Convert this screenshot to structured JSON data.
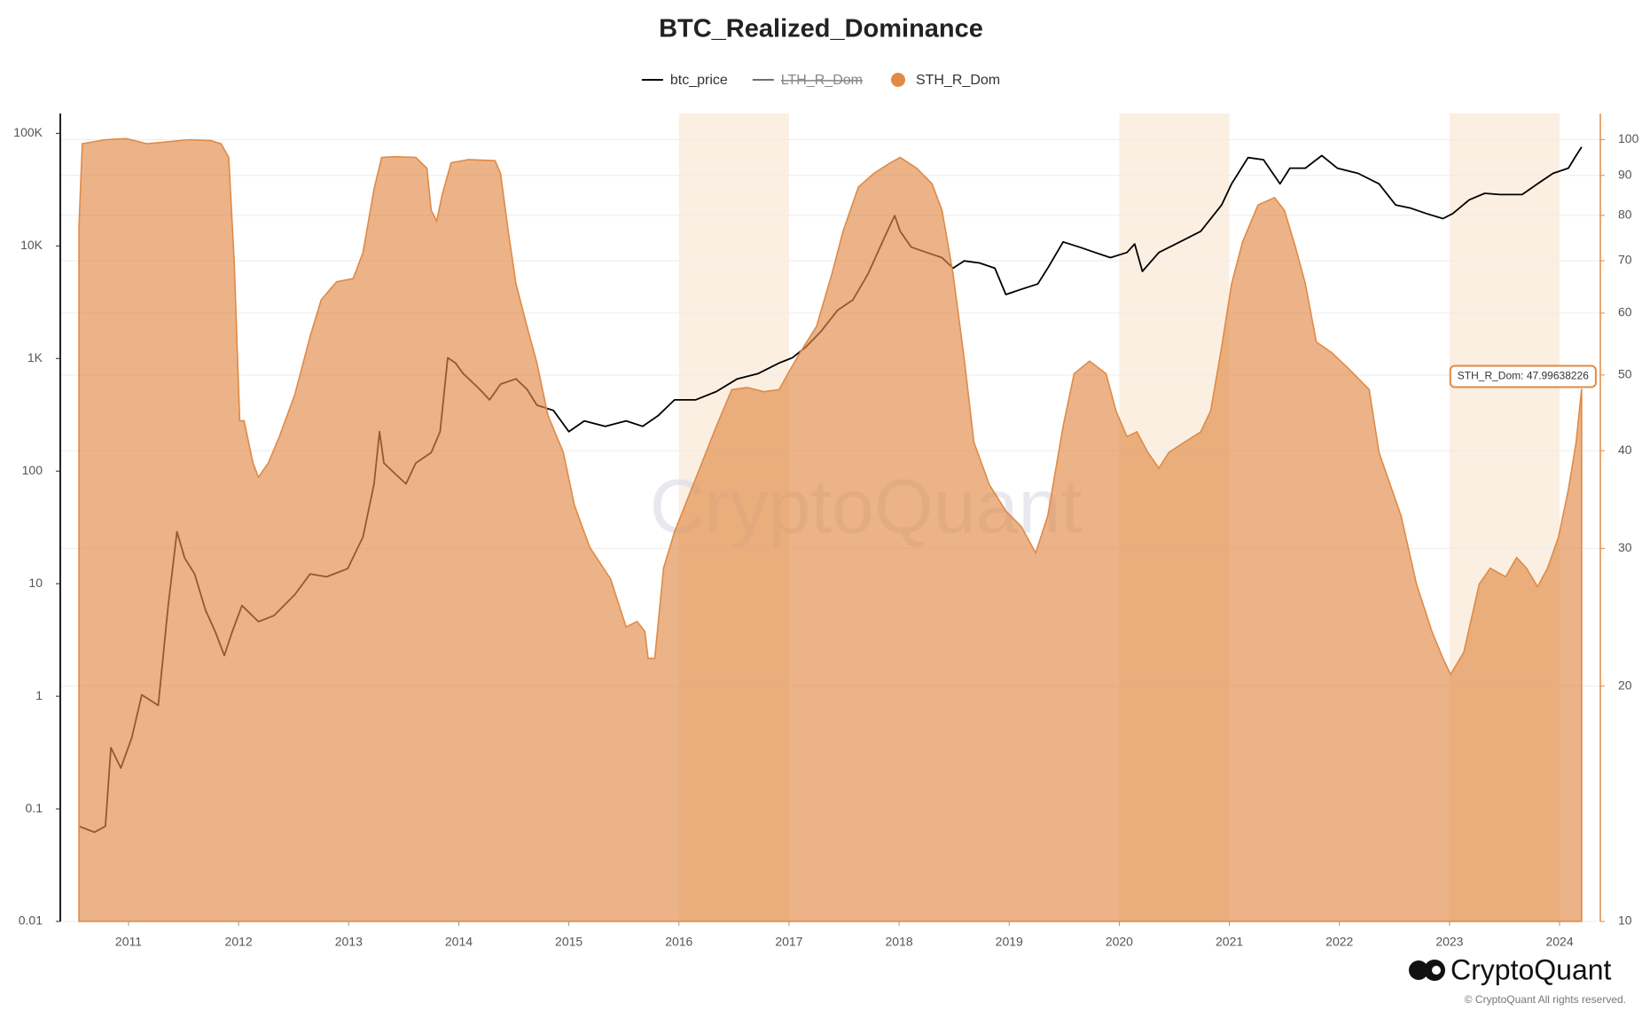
{
  "chart_data": {
    "type": "line",
    "title": "BTC_Realized_Dominance",
    "xlim": [
      2010.38,
      2024.37
    ],
    "xticks": [
      2011,
      2012,
      2013,
      2014,
      2015,
      2016,
      2017,
      2018,
      2019,
      2020,
      2021,
      2022,
      2023,
      2024
    ],
    "ylim": [
      0.01,
      150000
    ],
    "ylog": true,
    "yticks": [
      0.01,
      0.1,
      1,
      10,
      100,
      {
        "value": 1000,
        "label": "1K"
      },
      {
        "value": 10000,
        "label": "10K"
      },
      {
        "value": 100000,
        "label": "100K"
      }
    ],
    "y2lim": [
      10,
      108
    ],
    "y2log": true,
    "y2ticks": [
      10,
      20,
      30,
      40,
      50,
      60,
      70,
      80,
      90,
      100
    ],
    "grid": "y2",
    "shaded_ranges": [
      [
        2016,
        2017
      ],
      [
        2020,
        2021
      ],
      [
        2023,
        2024
      ]
    ],
    "shade_color": "#fbefe2",
    "series": [
      {
        "name": "btc_price",
        "type": "line",
        "color": "#000000",
        "x": [
          2010.55,
          2010.69,
          2010.79,
          2010.84,
          2010.93,
          2011.03,
          2011.12,
          2011.27,
          2011.36,
          2011.44,
          2011.51,
          2011.6,
          2011.7,
          2011.79,
          2011.87,
          2011.94,
          2012.03,
          2012.18,
          2012.32,
          2012.51,
          2012.65,
          2012.8,
          2012.99,
          2013.13,
          2013.23,
          2013.28,
          2013.32,
          2013.42,
          2013.52,
          2013.61,
          2013.75,
          2013.83,
          2013.9,
          2013.97,
          2014.04,
          2014.19,
          2014.28,
          2014.38,
          2014.52,
          2014.62,
          2014.71,
          2014.86,
          2015.0,
          2015.14,
          2015.33,
          2015.52,
          2015.67,
          2015.81,
          2015.96,
          2016.15,
          2016.34,
          2016.53,
          2016.72,
          2016.91,
          2017.03,
          2017.15,
          2017.29,
          2017.44,
          2017.58,
          2017.72,
          2017.87,
          2017.96,
          2018.01,
          2018.11,
          2018.25,
          2018.39,
          2018.49,
          2018.59,
          2018.73,
          2018.87,
          2018.97,
          2019.11,
          2019.26,
          2019.35,
          2019.49,
          2019.64,
          2019.78,
          2019.92,
          2020.07,
          2020.14,
          2020.21,
          2020.36,
          2020.55,
          2020.74,
          2020.93,
          2021.02,
          2021.17,
          2021.31,
          2021.46,
          2021.55,
          2021.69,
          2021.84,
          2021.98,
          2022.17,
          2022.36,
          2022.51,
          2022.65,
          2022.79,
          2022.94,
          2023.03,
          2023.18,
          2023.32,
          2023.46,
          2023.66,
          2023.8,
          2023.94,
          2024.08,
          2024.15,
          2024.2
        ],
        "values": [
          0.07,
          0.062,
          0.07,
          0.35,
          0.23,
          0.43,
          1.03,
          0.83,
          6.4,
          29,
          16.9,
          12.2,
          5.8,
          3.7,
          2.3,
          3.7,
          6.4,
          4.6,
          5.2,
          8.0,
          12.2,
          11.5,
          13.6,
          26,
          77,
          224,
          118,
          95,
          77,
          118,
          146,
          224,
          1016,
          912,
          735,
          532,
          429,
          593,
          659,
          532,
          385,
          346,
          224,
          279,
          250,
          279,
          250,
          310,
          429,
          429,
          509,
          659,
          735,
          912,
          1016,
          1259,
          1738,
          2679,
          3319,
          5690,
          12100,
          18600,
          13500,
          9750,
          8750,
          7870,
          6340,
          7360,
          7060,
          6340,
          3700,
          4120,
          4590,
          6340,
          10860,
          9750,
          8750,
          7870,
          8750,
          10400,
          5940,
          8750,
          10860,
          13500,
          23100,
          35600,
          60900,
          58300,
          35600,
          49100,
          49100,
          63500,
          49100,
          44100,
          35600,
          23100,
          21600,
          19400,
          17500,
          19400,
          25700,
          29300,
          28600,
          28600,
          35600,
          44100,
          49100,
          63500,
          75500
        ]
      },
      {
        "name": "LTH_R_Dom",
        "color": "#6e6e7a",
        "visible": false
      },
      {
        "name": "STH_R_Dom",
        "type": "area",
        "axis": "y2",
        "color": "#e08a46",
        "x": [
          2010.55,
          2010.58,
          2010.79,
          2010.98,
          2011.17,
          2011.36,
          2011.55,
          2011.75,
          2011.84,
          2011.91,
          2011.96,
          2012.01,
          2012.05,
          2012.13,
          2012.18,
          2012.27,
          2012.37,
          2012.51,
          2012.65,
          2012.75,
          2012.89,
          2013.04,
          2013.13,
          2013.23,
          2013.3,
          2013.42,
          2013.61,
          2013.71,
          2013.75,
          2013.8,
          2013.85,
          2013.93,
          2014.09,
          2014.33,
          2014.38,
          2014.45,
          2014.52,
          2014.62,
          2014.71,
          2014.81,
          2014.95,
          2015.05,
          2015.19,
          2015.38,
          2015.52,
          2015.62,
          2015.69,
          2015.72,
          2015.78,
          2015.86,
          2015.96,
          2016.15,
          2016.34,
          2016.48,
          2016.62,
          2016.77,
          2016.91,
          2016.99,
          2017.1,
          2017.25,
          2017.39,
          2017.49,
          2017.63,
          2017.77,
          2017.92,
          2018.01,
          2018.16,
          2018.3,
          2018.39,
          2018.49,
          2018.59,
          2018.68,
          2018.82,
          2018.97,
          2019.11,
          2019.24,
          2019.35,
          2019.49,
          2019.59,
          2019.73,
          2019.88,
          2019.97,
          2020.07,
          2020.16,
          2020.26,
          2020.36,
          2020.45,
          2020.59,
          2020.74,
          2020.83,
          2020.93,
          2021.02,
          2021.12,
          2021.26,
          2021.41,
          2021.5,
          2021.6,
          2021.69,
          2021.79,
          2021.93,
          2022.08,
          2022.27,
          2022.36,
          2022.56,
          2022.7,
          2022.84,
          2022.94,
          2023.01,
          2023.13,
          2023.27,
          2023.37,
          2023.51,
          2023.61,
          2023.7,
          2023.8,
          2023.89,
          2023.99,
          2024.08,
          2024.15,
          2024.2
        ],
        "values": [
          77.5,
          98.8,
          100.0,
          100.3,
          98.8,
          99.4,
          100.0,
          99.7,
          98.8,
          94.9,
          69.6,
          43.7,
          43.7,
          38.6,
          37.0,
          38.6,
          41.7,
          47.2,
          56.0,
          62.4,
          65.8,
          66.4,
          71.7,
          86.5,
          94.9,
          95.1,
          94.9,
          91.9,
          81.2,
          78.7,
          85.1,
          93.4,
          94.3,
          94.0,
          90.5,
          76.3,
          65.4,
          57.7,
          51.8,
          44.4,
          39.8,
          34.1,
          30.1,
          27.4,
          23.8,
          24.2,
          23.5,
          21.7,
          21.7,
          28.3,
          31.5,
          36.8,
          43.0,
          47.9,
          48.2,
          47.6,
          47.9,
          50.2,
          53.4,
          57.7,
          67.4,
          76.3,
          87.0,
          90.5,
          93.4,
          94.9,
          91.9,
          87.8,
          81.2,
          67.4,
          52.6,
          41.0,
          36.2,
          33.5,
          32.0,
          29.6,
          33.0,
          43.0,
          50.2,
          52.1,
          50.2,
          45.0,
          41.7,
          42.3,
          39.8,
          38.0,
          39.8,
          41.0,
          42.3,
          45.0,
          54.3,
          65.4,
          74.0,
          82.5,
          84.3,
          81.2,
          72.9,
          65.4,
          55.1,
          53.4,
          51.0,
          47.9,
          39.8,
          33.0,
          27.0,
          23.5,
          21.7,
          20.7,
          22.1,
          27.0,
          28.3,
          27.6,
          29.2,
          28.3,
          26.8,
          28.3,
          31.0,
          35.7,
          41.0,
          47.99638226
        ]
      }
    ],
    "annotations": [
      {
        "text": "STH_R_Dom: 47.99638226"
      }
    ],
    "watermark": "CryptoQuant",
    "brand": "CryptoQuant",
    "copyright": "© CryptoQuant All rights reserved."
  }
}
